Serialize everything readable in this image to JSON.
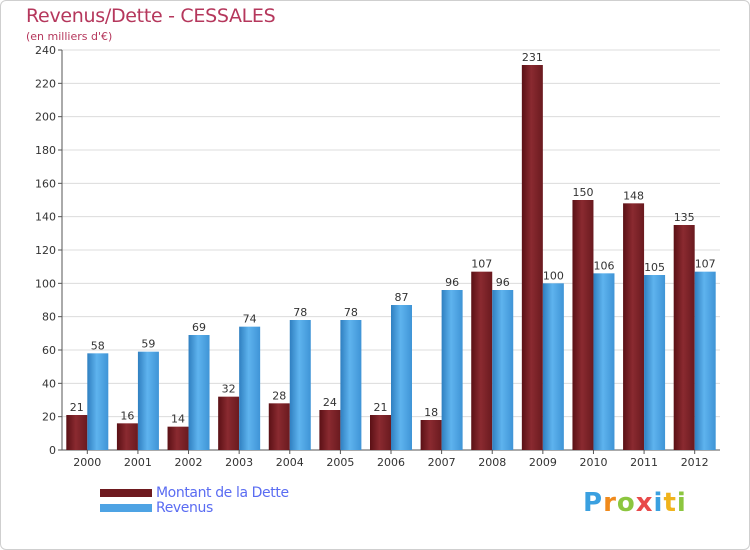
{
  "chart_data": {
    "type": "bar",
    "title": "Revenus/Dette - CESSALES",
    "subtitle": "(en milliers d'€)",
    "categories": [
      "2000",
      "2001",
      "2002",
      "2003",
      "2004",
      "2005",
      "2006",
      "2007",
      "2008",
      "2009",
      "2010",
      "2011",
      "2012"
    ],
    "series": [
      {
        "name": "Montant de la Dette",
        "color": "#6e1a1f",
        "values": [
          21,
          16,
          14,
          32,
          28,
          24,
          21,
          18,
          107,
          231,
          150,
          148,
          135
        ]
      },
      {
        "name": "Revenus",
        "color": "#4ea3e4",
        "values": [
          58,
          59,
          69,
          74,
          78,
          78,
          87,
          96,
          96,
          100,
          106,
          105,
          107
        ]
      }
    ],
    "ylim": [
      0,
      240
    ],
    "yticks": [
      0,
      20,
      40,
      60,
      80,
      100,
      120,
      140,
      160,
      180,
      200,
      220,
      240
    ],
    "grid": true,
    "legend": "bottom-left"
  },
  "logo": {
    "letters": [
      "P",
      "r",
      "o",
      "x",
      "i",
      "t",
      "i"
    ],
    "colors": [
      "#3aa0e0",
      "#f08a1c",
      "#8cc63f",
      "#e84a4a",
      "#3aa0e0",
      "#f0b31c",
      "#8cc63f"
    ]
  }
}
